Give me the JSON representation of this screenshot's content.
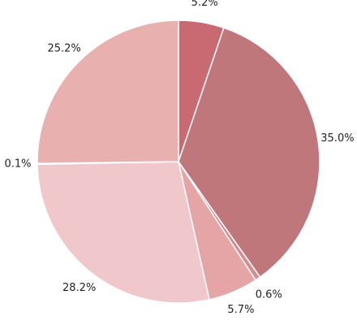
{
  "chart_data": {
    "type": "pie",
    "values": [
      5.2,
      35.0,
      0.6,
      5.7,
      28.2,
      0.1,
      25.2
    ],
    "value_labels": [
      "5.2%",
      "35.0%",
      "0.6%",
      "5.7%",
      "28.2%",
      "0.1%",
      "25.2%"
    ],
    "colors": [
      "#c96a73",
      "#c0777b",
      "#d48d90",
      "#e5a4a5",
      "#f0c7cb",
      "#e9b6b6",
      "#e8b0ae"
    ]
  }
}
